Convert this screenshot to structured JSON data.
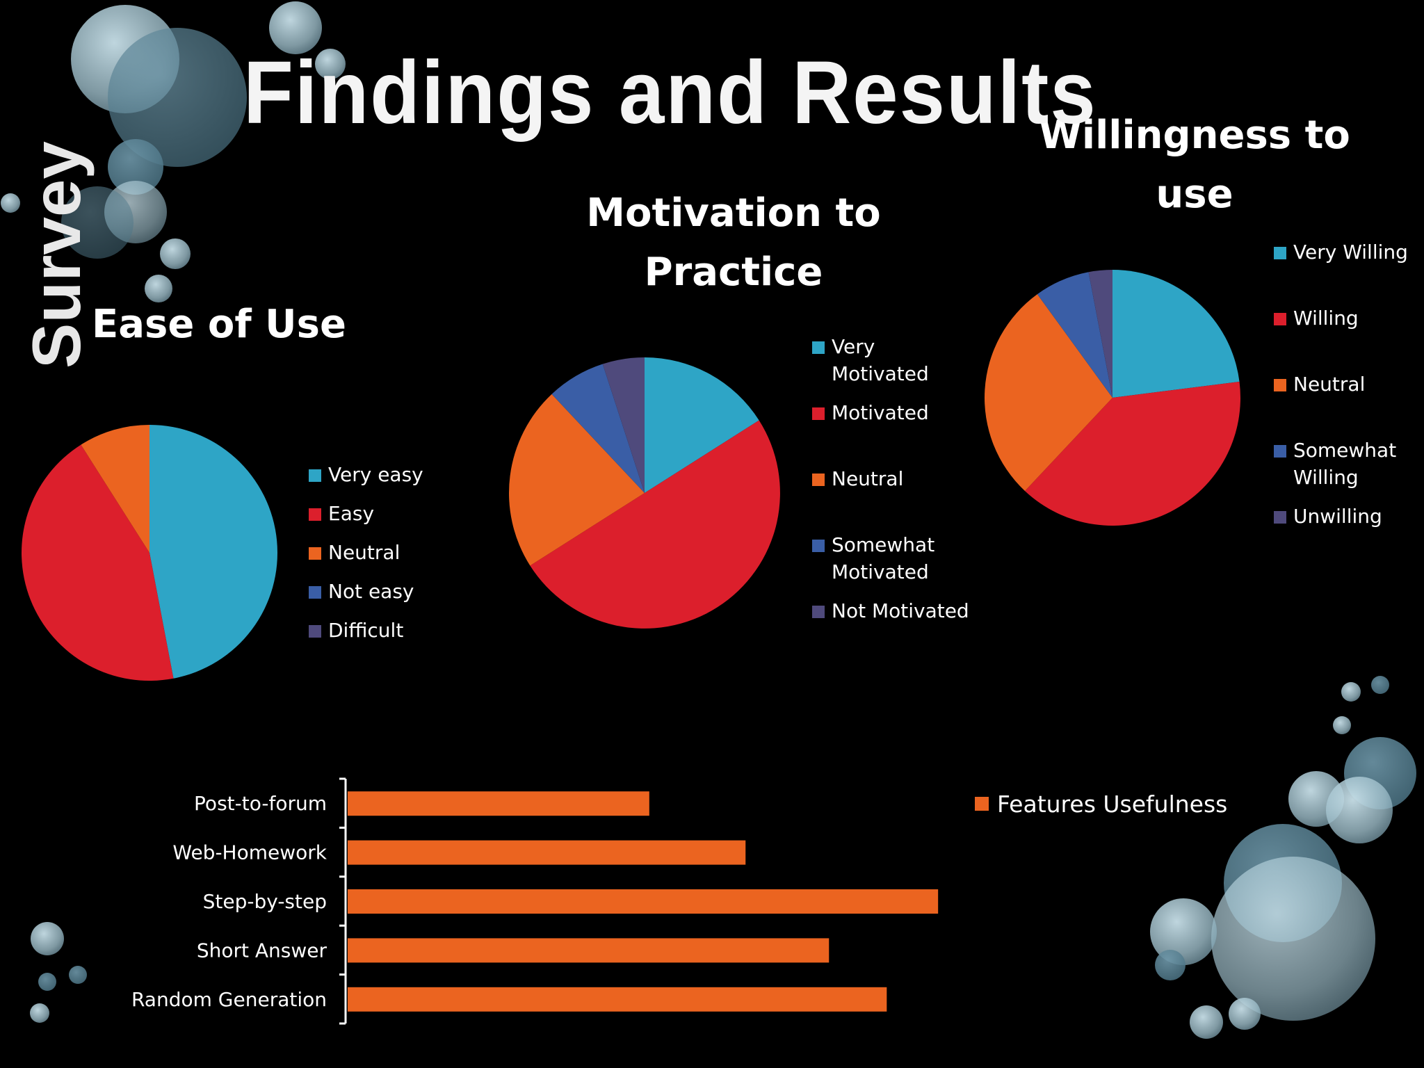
{
  "slide": {
    "title": "Findings and Results",
    "side_label": "Survey"
  },
  "colors": {
    "cyan": "#2ea5c6",
    "red": "#dc1f2c",
    "orange": "#eb6420",
    "blue": "#3a5ea6",
    "purple": "#4f4a7c",
    "bar": "#eb6420"
  },
  "chart_data": [
    {
      "type": "pie",
      "title": "Ease of Use",
      "categories": [
        "Very easy",
        "Easy",
        "Neutral",
        "Not easy",
        "Difficult"
      ],
      "values": [
        47,
        44,
        9,
        0,
        0
      ],
      "legend": "right"
    },
    {
      "type": "pie",
      "title": "Motivation to Practice",
      "categories": [
        "Very Motivated",
        "Motivated",
        "Neutral",
        "Somewhat Motivated",
        "Not Motivated"
      ],
      "values": [
        16,
        50,
        22,
        7,
        5
      ],
      "legend": "right"
    },
    {
      "type": "pie",
      "title": "Willingness to use",
      "categories": [
        "Very Willing",
        "Willing",
        "Neutral",
        "Somewhat Willing",
        "Unwilling"
      ],
      "values": [
        23,
        39,
        28,
        7,
        3
      ],
      "legend": "right"
    },
    {
      "type": "bar",
      "orientation": "horizontal",
      "title": "",
      "categories": [
        "Post-to-forum",
        "Web-Homework",
        "Step-by-step",
        "Short Answer",
        "Random Generation"
      ],
      "series": [
        {
          "name": "Features Usefulness",
          "values": [
            47,
            62,
            92,
            75,
            84
          ]
        }
      ],
      "xlim": [
        0,
        100
      ],
      "legend": "right",
      "grid": false
    }
  ]
}
